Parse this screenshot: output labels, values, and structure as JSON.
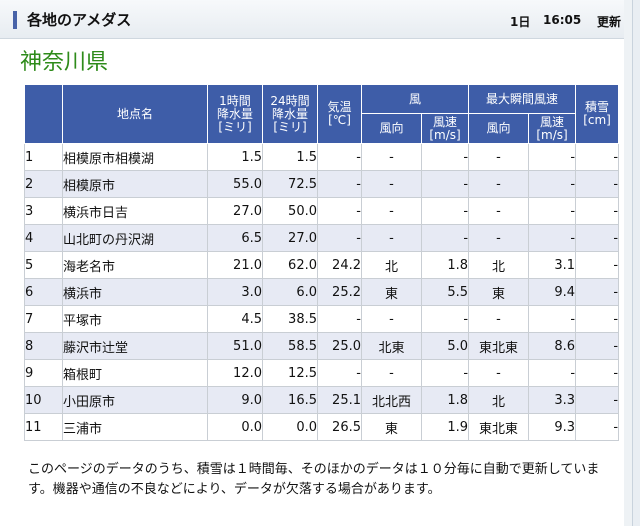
{
  "header": {
    "title": "各地のアメダス",
    "date": "1日",
    "time": "16:05",
    "update_label": "更新"
  },
  "prefecture": "神奈川県",
  "table": {
    "col_name": "地点名",
    "col_precip1h": "1時間\n降水量\n[ミリ]",
    "col_precip24h": "24時間\n降水量\n[ミリ]",
    "col_temp": "気温\n[℃]",
    "col_wind": "風",
    "col_gust": "最大瞬間風速",
    "col_snow": "積雪\n[cm]",
    "sub_dir": "風向",
    "sub_speed": "風速\n[m/s]",
    "rows": [
      {
        "no": "1",
        "name": "相模原市相模湖",
        "p1": "1.5",
        "p24": "1.5",
        "temp": "-",
        "wdir": "-",
        "wspd": "-",
        "gdir": "-",
        "gspd": "-",
        "snow": "-"
      },
      {
        "no": "2",
        "name": "相模原市",
        "p1": "55.0",
        "p24": "72.5",
        "temp": "-",
        "wdir": "-",
        "wspd": "-",
        "gdir": "-",
        "gspd": "-",
        "snow": "-"
      },
      {
        "no": "3",
        "name": "横浜市日吉",
        "p1": "27.0",
        "p24": "50.0",
        "temp": "-",
        "wdir": "-",
        "wspd": "-",
        "gdir": "-",
        "gspd": "-",
        "snow": "-"
      },
      {
        "no": "4",
        "name": "山北町の丹沢湖",
        "p1": "6.5",
        "p24": "27.0",
        "temp": "-",
        "wdir": "-",
        "wspd": "-",
        "gdir": "-",
        "gspd": "-",
        "snow": "-"
      },
      {
        "no": "5",
        "name": "海老名市",
        "p1": "21.0",
        "p24": "62.0",
        "temp": "24.2",
        "wdir": "北",
        "wspd": "1.8",
        "gdir": "北",
        "gspd": "3.1",
        "snow": "-"
      },
      {
        "no": "6",
        "name": "横浜市",
        "p1": "3.0",
        "p24": "6.0",
        "temp": "25.2",
        "wdir": "東",
        "wspd": "5.5",
        "gdir": "東",
        "gspd": "9.4",
        "snow": "-"
      },
      {
        "no": "7",
        "name": "平塚市",
        "p1": "4.5",
        "p24": "38.5",
        "temp": "-",
        "wdir": "-",
        "wspd": "-",
        "gdir": "-",
        "gspd": "-",
        "snow": "-"
      },
      {
        "no": "8",
        "name": "藤沢市辻堂",
        "p1": "51.0",
        "p24": "58.5",
        "temp": "25.0",
        "wdir": "北東",
        "wspd": "5.0",
        "gdir": "東北東",
        "gspd": "8.6",
        "snow": "-"
      },
      {
        "no": "9",
        "name": "箱根町",
        "p1": "12.0",
        "p24": "12.5",
        "temp": "-",
        "wdir": "-",
        "wspd": "-",
        "gdir": "-",
        "gspd": "-",
        "snow": "-"
      },
      {
        "no": "10",
        "name": "小田原市",
        "p1": "9.0",
        "p24": "16.5",
        "temp": "25.1",
        "wdir": "北北西",
        "wspd": "1.8",
        "gdir": "北",
        "gspd": "3.3",
        "snow": "-"
      },
      {
        "no": "11",
        "name": "三浦市",
        "p1": "0.0",
        "p24": "0.0",
        "temp": "26.5",
        "wdir": "東",
        "wspd": "1.9",
        "gdir": "東北東",
        "gspd": "9.3",
        "snow": "-"
      }
    ]
  },
  "note": "このページのデータのうち、積雪は１時間毎、そのほかのデータは１０分毎に自動で更新しています。機器や通信の不良などにより、データが欠落する場合があります。"
}
